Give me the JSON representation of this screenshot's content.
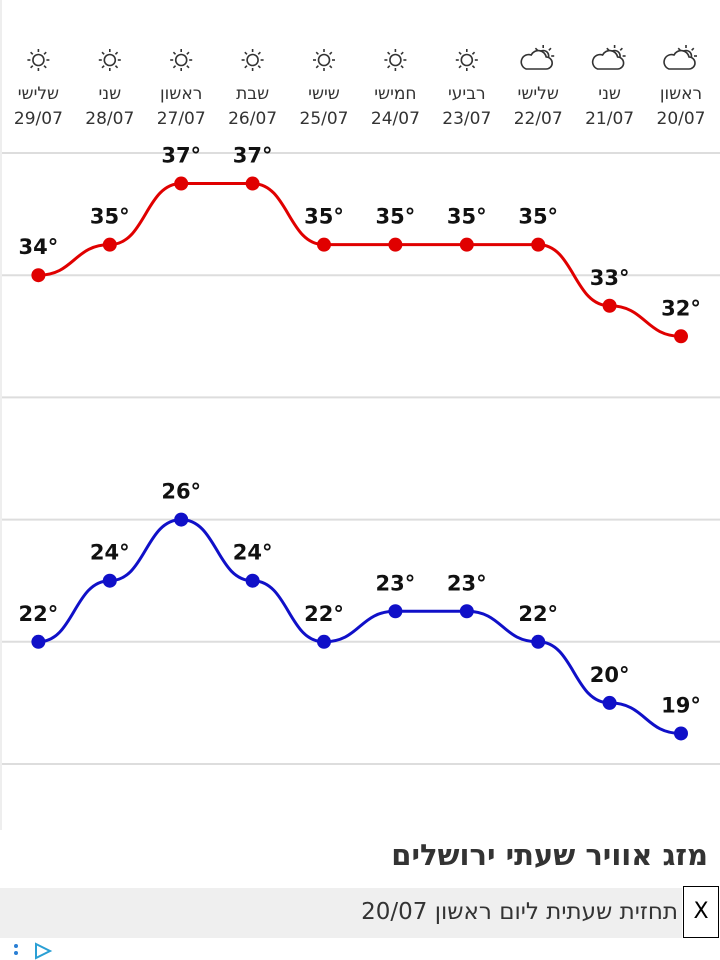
{
  "chart_data": {
    "type": "line",
    "categories": [
      "20/07",
      "21/07",
      "22/07",
      "23/07",
      "24/07",
      "25/07",
      "26/07",
      "27/07",
      "28/07",
      "29/07"
    ],
    "day_names": [
      "ראשון",
      "שני",
      "שלישי",
      "רביעי",
      "חמישי",
      "שישי",
      "שבת",
      "ראשון",
      "שני",
      "שלישי"
    ],
    "icons": [
      "partly-cloudy",
      "partly-cloudy",
      "partly-cloudy",
      "sunny",
      "sunny",
      "sunny",
      "sunny",
      "sunny",
      "sunny",
      "sunny"
    ],
    "series": [
      {
        "color": "#e00000",
        "values": [
          32,
          33,
          35,
          35,
          35,
          35,
          37,
          37,
          35,
          34
        ],
        "value_labels": [
          "32°",
          "33°",
          "35°",
          "35°",
          "35°",
          "35°",
          "37°",
          "37°",
          "35°",
          "34°"
        ]
      },
      {
        "color": "#1010c8",
        "values": [
          19,
          20,
          22,
          23,
          23,
          22,
          24,
          26,
          24,
          22
        ],
        "value_labels": [
          "19°",
          "20°",
          "22°",
          "23°",
          "23°",
          "22°",
          "24°",
          "26°",
          "24°",
          "22°"
        ]
      }
    ],
    "ylim": [
      18,
      38
    ],
    "yticks": [
      18,
      22,
      26,
      30,
      34,
      38
    ],
    "grid": true,
    "direction": "rtl"
  },
  "section_title": "מזג אוויר שעתי ירושלים",
  "hourly_bar": "תחזית שעתית ליום ראשון 20/07",
  "close_button": "X"
}
